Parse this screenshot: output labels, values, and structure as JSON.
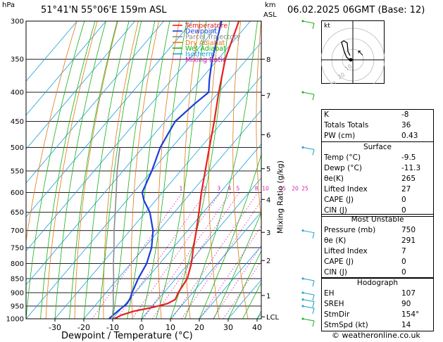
{
  "header": {
    "pressure_unit": "hPa",
    "location": "51°41'N  55°06'E  159m  ASL",
    "km_unit": "km",
    "asl_unit": "ASL",
    "datetime": "06.02.2025  06GMT  (Base: 12)"
  },
  "footer": {
    "copyright": "© weatheronline.co.uk"
  },
  "legend": [
    {
      "label": "Temperature",
      "color": "#e8201e",
      "style": "solid"
    },
    {
      "label": "Dewpoint",
      "color": "#1b3dd8",
      "style": "solid"
    },
    {
      "label": "Parcel Trajectory",
      "color": "#8c8c8c",
      "style": "solid"
    },
    {
      "label": "Dry Adiabat",
      "color": "#e07a10",
      "style": "solid"
    },
    {
      "label": "Wet Adiabat",
      "color": "#16b016",
      "style": "solid"
    },
    {
      "label": "Isotherm",
      "color": "#18a0e0",
      "style": "solid"
    },
    {
      "label": "Mixing Ratio",
      "color": "#d018b0",
      "style": "dotted"
    }
  ],
  "chart_data": {
    "type": "line",
    "xlabel": "Dewpoint / Temperature (°C)",
    "ylabel_right": "Mixing Ratio (g/kg)",
    "x_ticks": [
      -30,
      -20,
      -10,
      0,
      10,
      20,
      30,
      40
    ],
    "pressure_levels": [
      300,
      350,
      400,
      450,
      500,
      550,
      600,
      650,
      700,
      750,
      800,
      850,
      900,
      950,
      1000
    ],
    "height_km_ticks": [
      {
        "label": "8",
        "p": 350
      },
      {
        "label": "7",
        "p": 405
      },
      {
        "label": "6",
        "p": 475
      },
      {
        "label": "5",
        "p": 545
      },
      {
        "label": "4",
        "p": 617
      },
      {
        "label": "3",
        "p": 705
      },
      {
        "label": "2",
        "p": 790
      },
      {
        "label": "1",
        "p": 910
      },
      {
        "label": "LCL",
        "p": 992
      }
    ],
    "mixing_ratio_labels": [
      "1",
      "2",
      "3",
      "4",
      "5",
      "8",
      "10",
      "15",
      "20",
      "25"
    ],
    "mixing_ratio_values": [
      1,
      2,
      3,
      4,
      5,
      8,
      10,
      15,
      20,
      25
    ],
    "series": [
      {
        "name": "Temperature",
        "color": "#e8201e",
        "points": [
          [
            1000,
            -9.5
          ],
          [
            985,
            -8.0
          ],
          [
            970,
            -5.0
          ],
          [
            955,
            0.5
          ],
          [
            940,
            4.5
          ],
          [
            925,
            6.0
          ],
          [
            900,
            5.0
          ],
          [
            850,
            4.0
          ],
          [
            800,
            1.0
          ],
          [
            750,
            -3.0
          ],
          [
            700,
            -7.0
          ],
          [
            650,
            -11.5
          ],
          [
            600,
            -16.5
          ],
          [
            550,
            -21.5
          ],
          [
            500,
            -27.0
          ],
          [
            450,
            -33.0
          ],
          [
            400,
            -40.0
          ],
          [
            350,
            -47.5
          ],
          [
            300,
            -54.0
          ]
        ]
      },
      {
        "name": "Dewpoint",
        "color": "#1b3dd8",
        "points": [
          [
            1000,
            -11.3
          ],
          [
            970,
            -10.5
          ],
          [
            940,
            -9.5
          ],
          [
            920,
            -10.0
          ],
          [
            900,
            -11.0
          ],
          [
            850,
            -13.0
          ],
          [
            800,
            -14.5
          ],
          [
            750,
            -17.5
          ],
          [
            700,
            -22.0
          ],
          [
            650,
            -28.5
          ],
          [
            620,
            -34.0
          ],
          [
            600,
            -37.0
          ],
          [
            550,
            -40.0
          ],
          [
            500,
            -44.0
          ],
          [
            450,
            -46.5
          ],
          [
            420,
            -45.0
          ],
          [
            400,
            -43.5
          ],
          [
            380,
            -47.0
          ],
          [
            350,
            -52.0
          ],
          [
            300,
            -60.0
          ]
        ]
      },
      {
        "name": "Parcel Trajectory",
        "color": "#8c8c8c",
        "points": [
          [
            1000,
            -9.5
          ],
          [
            990,
            -10.8
          ],
          [
            950,
            -13.5
          ],
          [
            900,
            -17.5
          ],
          [
            850,
            -21.5
          ],
          [
            800,
            -26.0
          ],
          [
            750,
            -30.5
          ],
          [
            700,
            -35.5
          ],
          [
            650,
            -40.5
          ],
          [
            600,
            -46.0
          ],
          [
            550,
            -52.0
          ],
          [
            500,
            -58.0
          ]
        ]
      }
    ],
    "wind_barbs": [
      {
        "p": 300,
        "color": "#16b016"
      },
      {
        "p": 400,
        "color": "#16b016"
      },
      {
        "p": 500,
        "color": "#18a0c8"
      },
      {
        "p": 700,
        "color": "#18a0c8"
      },
      {
        "p": 850,
        "color": "#18a0c8"
      },
      {
        "p": 900,
        "color": "#18a0c8"
      },
      {
        "p": 925,
        "color": "#18a0c8"
      },
      {
        "p": 950,
        "color": "#18a0c8"
      },
      {
        "p": 1000,
        "color": "#16b016"
      }
    ]
  },
  "hodograph": {
    "unit_label": "kt",
    "ring_labels": [
      "10",
      "20",
      "30"
    ]
  },
  "indices": {
    "rows": [
      [
        "K",
        "-8"
      ],
      [
        "Totals Totals",
        "36"
      ],
      [
        "PW (cm)",
        "0.43"
      ]
    ]
  },
  "surface": {
    "title": "Surface",
    "rows": [
      [
        "Temp (°C)",
        "-9.5"
      ],
      [
        "Dewp (°C)",
        "-11.3"
      ],
      [
        "θe(K)",
        "265"
      ],
      [
        "Lifted Index",
        "27"
      ],
      [
        "CAPE (J)",
        "0"
      ],
      [
        "CIN (J)",
        "0"
      ]
    ]
  },
  "most_unstable": {
    "title": "Most Unstable",
    "rows": [
      [
        "Pressure (mb)",
        "750"
      ],
      [
        "θe (K)",
        "291"
      ],
      [
        "Lifted Index",
        "7"
      ],
      [
        "CAPE (J)",
        "0"
      ],
      [
        "CIN (J)",
        "0"
      ]
    ]
  },
  "hodo_table": {
    "title": "Hodograph",
    "rows": [
      [
        "EH",
        "107"
      ],
      [
        "SREH",
        "90"
      ],
      [
        "StmDir",
        "154°"
      ],
      [
        "StmSpd (kt)",
        "14"
      ]
    ]
  }
}
